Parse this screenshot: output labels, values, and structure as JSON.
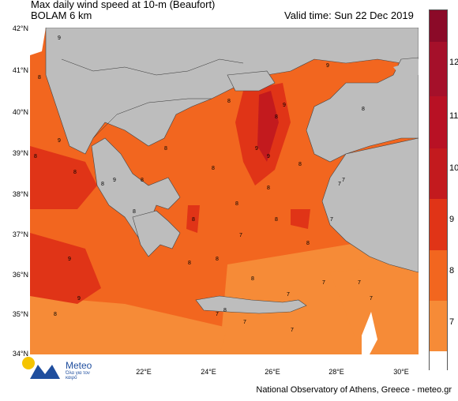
{
  "header": {
    "title": "Max daily wind speed at 10-m (Beaufort)",
    "model": "BOLAM 6 km",
    "valid_time": "Valid time: Sun 22 Dec 2019"
  },
  "axes": {
    "lat_labels": [
      "42°N",
      "41°N",
      "40°N",
      "39°N",
      "38°N",
      "37°N",
      "36°N",
      "35°N",
      "34°N"
    ],
    "lon_labels": [
      "22°E",
      "24°E",
      "26°E",
      "28°E",
      "30°E"
    ]
  },
  "colorbar": {
    "ticks": [
      "12",
      "11",
      "10",
      "9",
      "8",
      "7"
    ],
    "colors": [
      "#8b0a28",
      "#a5102a",
      "#c31a1e",
      "#e03417",
      "#f2661f",
      "#f68b37",
      "#ffffff"
    ]
  },
  "map_labels": [
    "9",
    "8",
    "9",
    "8",
    "8",
    "9",
    "9",
    "8",
    "8",
    "9",
    "8",
    "8",
    "9",
    "8",
    "8",
    "9",
    "8",
    "7",
    "7",
    "7",
    "8",
    "9",
    "8",
    "8",
    "7",
    "7",
    "7",
    "7",
    "8",
    "8",
    "8",
    "9",
    "8",
    "7",
    "7",
    "8",
    "7",
    "8",
    "7",
    "8",
    "8",
    "8"
  ],
  "branding": {
    "logo_name": "Meteo",
    "logo_tagline": "Όλα για τον καιρό",
    "credit": "National Observatory of Athens, Greece - meteo.gr"
  }
}
